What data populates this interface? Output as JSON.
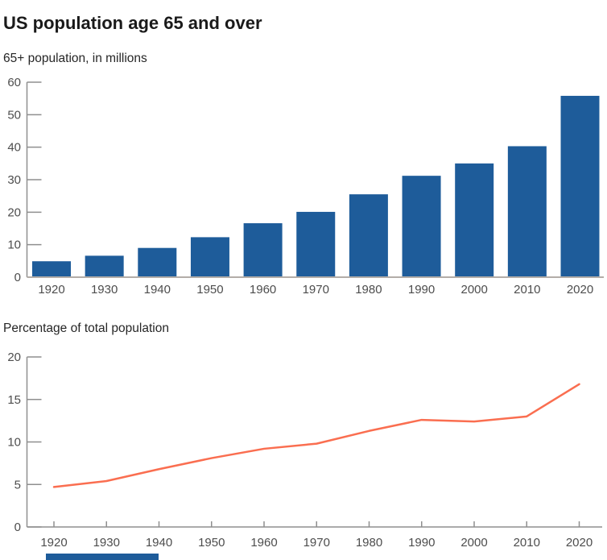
{
  "header": {
    "title": "US population age 65 and over"
  },
  "chart_data": [
    {
      "type": "bar",
      "title": "65+ population, in millions",
      "categories": [
        "1920",
        "1930",
        "1940",
        "1950",
        "1960",
        "1970",
        "1980",
        "1990",
        "2000",
        "2010",
        "2020"
      ],
      "values": [
        4.9,
        6.6,
        9.0,
        12.3,
        16.6,
        20.1,
        25.5,
        31.2,
        35.0,
        40.3,
        55.8
      ],
      "xlabel": "",
      "ylabel": "",
      "ylim": [
        0,
        60
      ],
      "yticks": [
        0,
        10,
        20,
        30,
        40,
        50,
        60
      ],
      "grid": false,
      "legend": "none",
      "bar_color": "#1e5c9a"
    },
    {
      "type": "line",
      "title": "Percentage of total population",
      "categories": [
        "1920",
        "1930",
        "1940",
        "1950",
        "1960",
        "1970",
        "1980",
        "1990",
        "2000",
        "2010",
        "2020"
      ],
      "values": [
        4.7,
        5.4,
        6.8,
        8.1,
        9.2,
        9.8,
        11.3,
        12.6,
        12.4,
        13.0,
        16.8
      ],
      "xlabel": "",
      "ylabel": "",
      "ylim": [
        0,
        20
      ],
      "yticks": [
        0,
        5,
        10,
        15,
        20
      ],
      "grid": false,
      "legend": "none",
      "line_color": "#fa6e50"
    }
  ],
  "styles": {
    "background": "#ffffff",
    "title_color": "#1a1a1a",
    "subtitle_color": "#262626",
    "axis_color": "#8f8f8f",
    "bar_baseline_color": "#b3ada8",
    "tick_label_color": "#4d4d4d"
  },
  "partial_bottom_element": {
    "color": "#1e5c9a"
  }
}
